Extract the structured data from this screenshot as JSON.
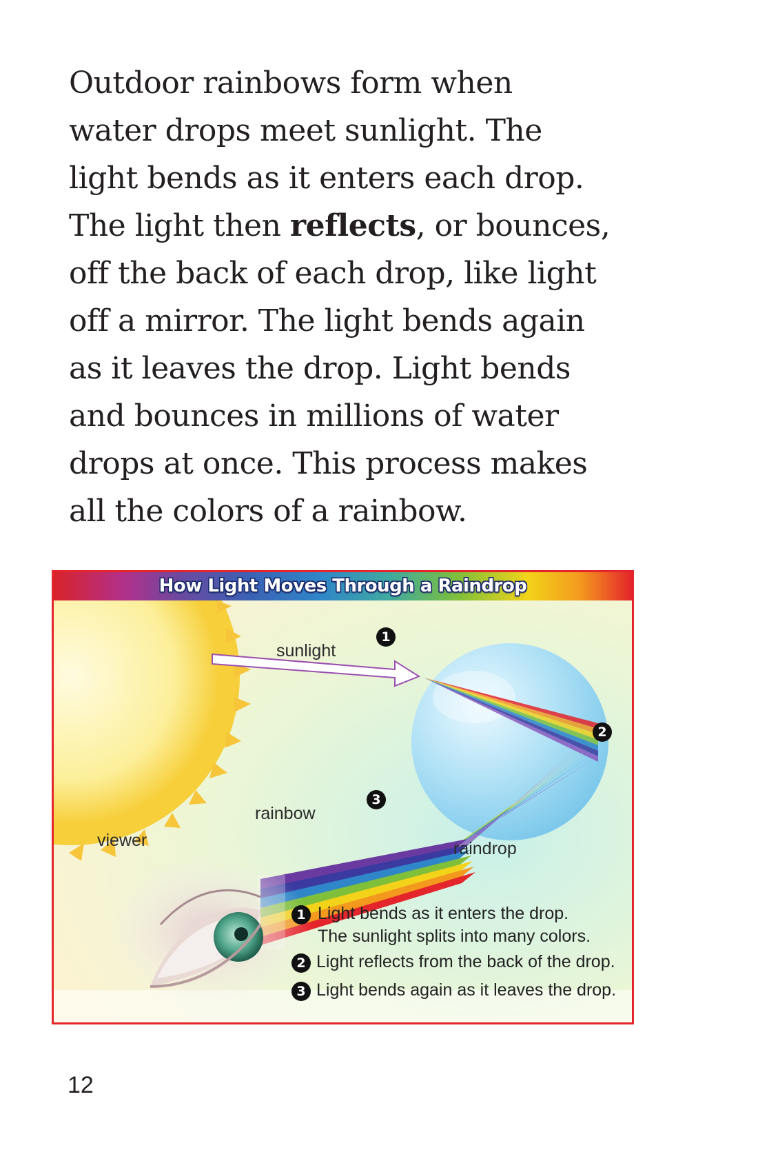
{
  "body_text": {
    "line1": "Outdoor rainbows form when",
    "line2": "water drops meet sunlight. The",
    "line3": "light bends as it enters each drop.",
    "line4_before": "The light then ",
    "line4_bold": "reflects",
    "line4_after": ", or bounces,",
    "line5": "off the back of each drop, like light",
    "line6": "off a mirror. The light bends again",
    "line7": "as it leaves the drop. Light bends",
    "line8": "and bounces in millions of water",
    "line9": "drops at once. This process makes",
    "line10": "all the colors of a rainbow."
  },
  "figure": {
    "title": "How Light Moves Through a Raindrop",
    "labels": {
      "sunlight": "sunlight",
      "rainbow": "rainbow",
      "viewer": "viewer",
      "raindrop": "raindrop"
    },
    "markers": {
      "one": "1",
      "two": "2",
      "three": "3"
    },
    "legend": {
      "item1_line1": "Light bends as it enters the drop.",
      "item1_line2": "The sunlight splits into many colors.",
      "item2": "Light reflects from the back of the drop.",
      "item3": "Light bends again as it leaves the drop."
    },
    "colors": {
      "frame": "#e4252b",
      "sun": "#f6cf3a",
      "raindrop": "#8ccfee",
      "spectrum": [
        "#e4252b",
        "#f39a1e",
        "#f2d31a",
        "#7fbf3a",
        "#2f86c8",
        "#3a3aa0",
        "#6a3aa0"
      ]
    }
  },
  "page_number": "12"
}
